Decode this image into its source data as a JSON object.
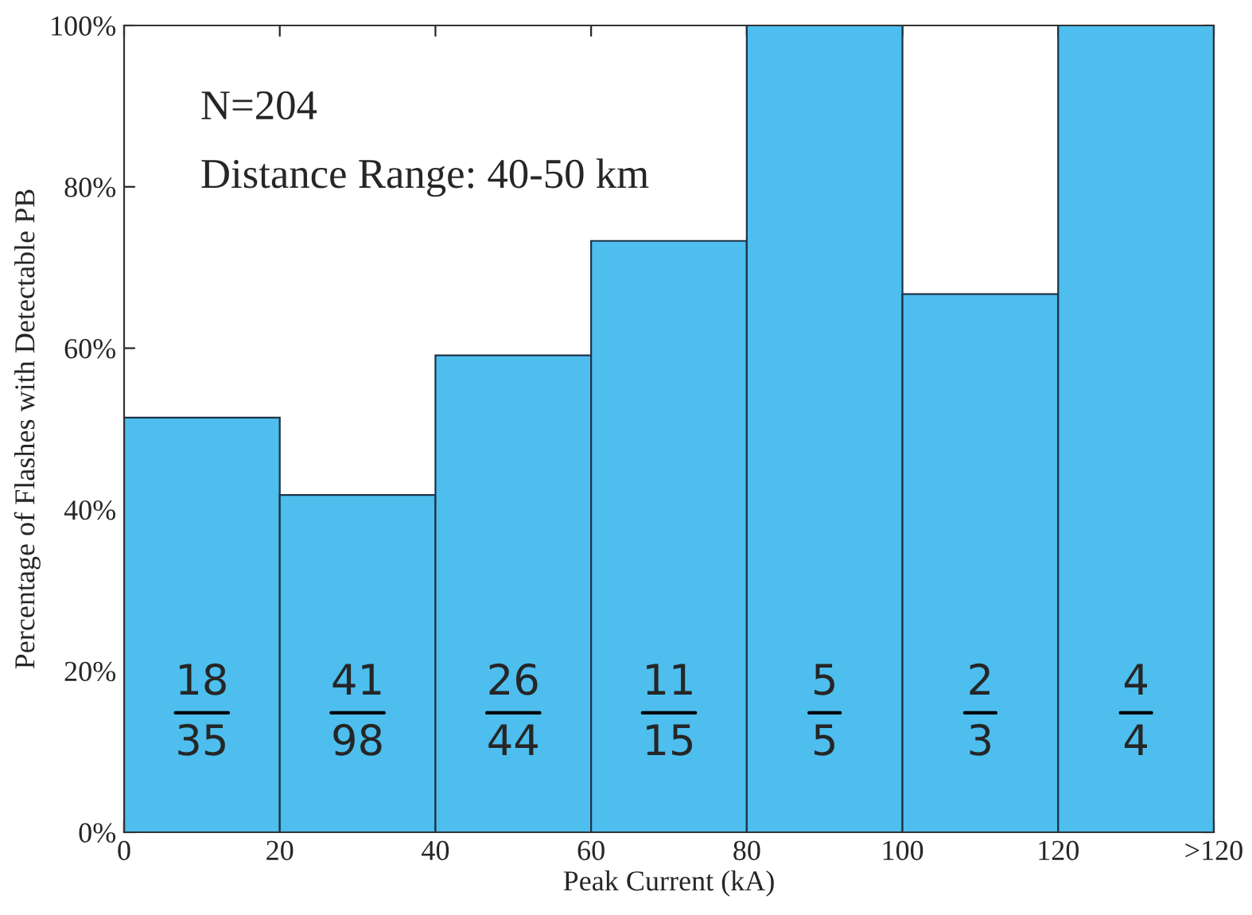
{
  "chart_data": {
    "type": "histogram",
    "xlabel": "Peak Current (kA)",
    "ylabel": "Percentage of Flashes with Detectable PB",
    "bins": [
      0,
      20,
      40,
      60,
      80,
      100,
      120,
      140
    ],
    "values": [
      51.4,
      41.8,
      59.1,
      73.3,
      100,
      66.7,
      100
    ],
    "color": "#4dbeee",
    "xlim": [
      0,
      140
    ],
    "xticks": [
      0,
      20,
      40,
      60,
      80,
      100,
      120,
      {
        "value": 140,
        "label": ">120"
      }
    ],
    "ylim": [
      0,
      100
    ],
    "yticks": [
      {
        "value": 0,
        "label": "0%"
      },
      {
        "value": 20,
        "label": "20%"
      },
      {
        "value": 40,
        "label": "40%"
      },
      {
        "value": 60,
        "label": "60%"
      },
      {
        "value": 80,
        "label": "80%"
      },
      {
        "value": 100,
        "label": "100%"
      }
    ],
    "grid": false,
    "annotations": [
      "N=204",
      "Distance Range: 40-50 km",
      "18",
      "35",
      "41",
      "98",
      "26",
      "44",
      "11",
      "15",
      "5",
      "5",
      "2",
      "3",
      "4",
      "4"
    ]
  }
}
